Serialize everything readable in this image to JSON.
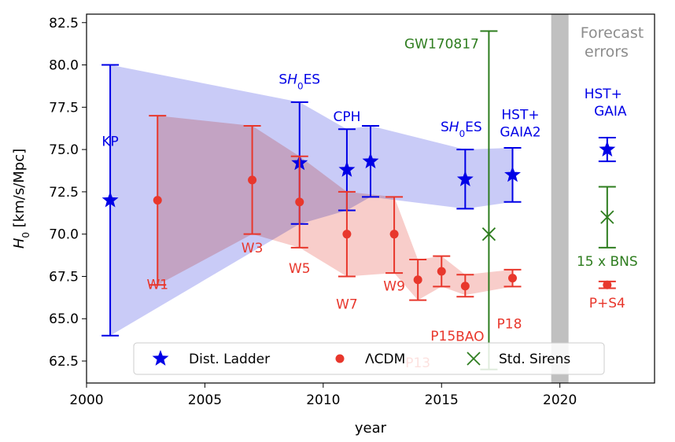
{
  "chart_data": {
    "type": "scatter",
    "xlabel": "year",
    "ylabel_prefix": "H",
    "ylabel_sub": "0",
    "ylabel_suffix": " [km/s/Mpc]",
    "xlim": [
      2000,
      2024
    ],
    "ylim": [
      61.2,
      83.0
    ],
    "xticks": [
      2000,
      2005,
      2010,
      2015,
      2020
    ],
    "yticks": [
      62.5,
      65.0,
      67.5,
      70.0,
      72.5,
      75.0,
      77.5,
      80.0,
      82.5
    ],
    "colors": {
      "ladder": "#0000e6",
      "lcdm": "#e8372c",
      "sirens": "#2e7d1f",
      "forecast_text": "#8c8c8c",
      "band_ladder": "#c6c8f7",
      "band_lcdm": "#f6bcb8",
      "divider": "#c0c0c0"
    },
    "forecast_divider_x": 2020,
    "forecast_label": [
      "Forecast",
      "errors"
    ],
    "ladder_band": {
      "x": [
        2001,
        2009,
        2011,
        2012,
        2016,
        2018
      ],
      "upper": [
        80.0,
        77.8,
        76.2,
        76.4,
        75.0,
        75.1
      ],
      "lower": [
        64.0,
        70.6,
        71.4,
        72.2,
        71.5,
        71.9
      ]
    },
    "lcdm_band": {
      "x": [
        2003,
        2007,
        2009,
        2011,
        2013,
        2014,
        2015,
        2016,
        2018
      ],
      "upper": [
        77.0,
        76.4,
        74.6,
        72.5,
        72.2,
        68.5,
        68.7,
        67.6,
        67.9
      ],
      "lower": [
        67.0,
        70.0,
        69.2,
        67.5,
        67.7,
        66.1,
        66.9,
        66.4,
        66.9
      ]
    },
    "series": [
      {
        "name": "Dist. Ladder",
        "key": "ladder",
        "marker": "star",
        "points": [
          {
            "x": 2001,
            "y": 72.0,
            "lo": 64.0,
            "hi": 80.0,
            "label": "KP"
          },
          {
            "x": 2009,
            "y": 74.2,
            "lo": 70.6,
            "hi": 77.8,
            "label": "SH0ES"
          },
          {
            "x": 2011,
            "y": 73.8,
            "lo": 71.4,
            "hi": 76.2,
            "label": "CPH"
          },
          {
            "x": 2012,
            "y": 74.3,
            "lo": 72.2,
            "hi": 76.4,
            "label": ""
          },
          {
            "x": 2016,
            "y": 73.24,
            "lo": 71.5,
            "hi": 75.0,
            "label": "SH0ES"
          },
          {
            "x": 2018,
            "y": 73.5,
            "lo": 71.9,
            "hi": 75.1,
            "label": "HST+ GAIA2"
          }
        ]
      },
      {
        "name": "ΛCDM",
        "key": "lcdm",
        "marker": "dot",
        "points": [
          {
            "x": 2003,
            "y": 72.0,
            "lo": 67.0,
            "hi": 77.0,
            "label": "W1"
          },
          {
            "x": 2007,
            "y": 73.2,
            "lo": 70.0,
            "hi": 76.4,
            "label": "W3"
          },
          {
            "x": 2009,
            "y": 71.9,
            "lo": 69.2,
            "hi": 74.6,
            "label": "W5"
          },
          {
            "x": 2011,
            "y": 70.0,
            "lo": 67.5,
            "hi": 72.5,
            "label": "W7"
          },
          {
            "x": 2013,
            "y": 70.0,
            "lo": 67.7,
            "hi": 72.2,
            "label": "W9"
          },
          {
            "x": 2014,
            "y": 67.3,
            "lo": 66.1,
            "hi": 68.5,
            "label": "P13"
          },
          {
            "x": 2015,
            "y": 67.8,
            "lo": 66.9,
            "hi": 68.7,
            "label": "P15"
          },
          {
            "x": 2016,
            "y": 66.93,
            "lo": 66.3,
            "hi": 67.6,
            "label": "BAO"
          },
          {
            "x": 2018,
            "y": 67.4,
            "lo": 66.9,
            "hi": 67.9,
            "label": "P18"
          }
        ]
      },
      {
        "name": "Std. Sirens",
        "key": "sirens",
        "marker": "x",
        "points": [
          {
            "x": 2017,
            "y": 70.0,
            "lo": 62.0,
            "hi": 82.0,
            "label": "GW170817"
          }
        ]
      }
    ],
    "forecasts": [
      {
        "key": "ladder",
        "marker": "star",
        "x": 2022,
        "y": 75.0,
        "lo": 74.3,
        "hi": 75.7,
        "label": "HST+ GAIA"
      },
      {
        "key": "sirens",
        "marker": "x",
        "x": 2022,
        "y": 71.0,
        "lo": 69.2,
        "hi": 72.8,
        "label": "15 x BNS"
      },
      {
        "key": "lcdm",
        "marker": "dot",
        "x": 2022,
        "y": 67.0,
        "lo": 66.8,
        "hi": 67.2,
        "label": "P+S4"
      }
    ],
    "legend": {
      "placement": "bottom-center",
      "entries": [
        {
          "label": "Dist. Ladder",
          "key": "ladder",
          "marker": "star"
        },
        {
          "label": "ΛCDM",
          "key": "lcdm",
          "marker": "dot"
        },
        {
          "label": "Std. Sirens",
          "key": "sirens",
          "marker": "x"
        }
      ]
    }
  }
}
